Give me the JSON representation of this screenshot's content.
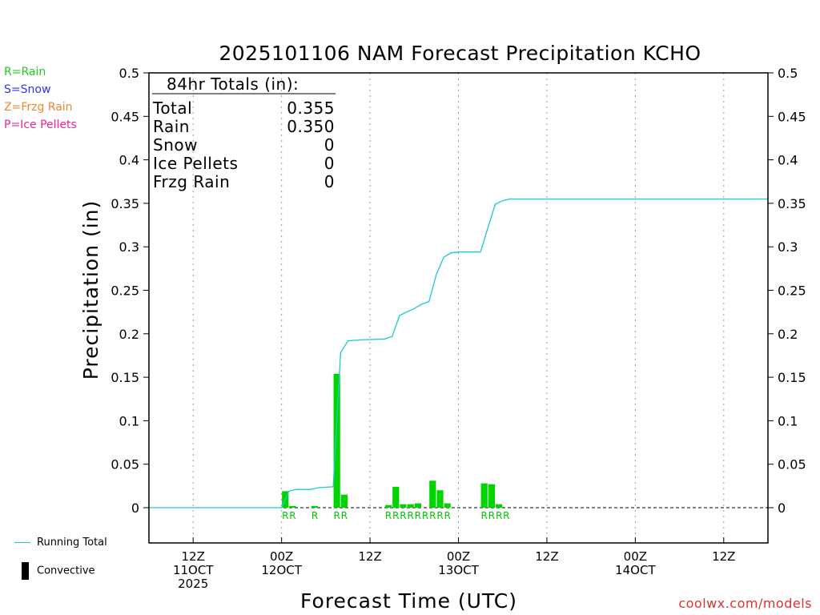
{
  "chart_data": {
    "type": "bar+line",
    "title": "2025101106 NAM Forecast Precipitation KCHO",
    "xlabel": "Forecast Time (UTC)",
    "ylabel": "Precipitation (in)",
    "ylim": [
      -0.04,
      0.5
    ],
    "yticks": [
      0,
      0.05,
      0.1,
      0.15,
      0.2,
      0.25,
      0.3,
      0.35,
      0.4,
      0.45,
      0.5
    ],
    "ytick_labels": [
      "0",
      "0.05",
      "0.1",
      "0.15",
      "0.2",
      "0.25",
      "0.3",
      "0.35",
      "0.4",
      "0.45",
      "0.5"
    ],
    "x_hours_range": [
      0,
      84
    ],
    "x_ticks": [
      {
        "hour": 6,
        "lines": [
          "12Z",
          "11OCT",
          "2025"
        ]
      },
      {
        "hour": 18,
        "lines": [
          "00Z",
          "12OCT"
        ]
      },
      {
        "hour": 30,
        "lines": [
          "12Z"
        ]
      },
      {
        "hour": 42,
        "lines": [
          "00Z",
          "13OCT"
        ]
      },
      {
        "hour": 54,
        "lines": [
          "12Z"
        ]
      },
      {
        "hour": 66,
        "lines": [
          "00Z",
          "14OCT"
        ]
      },
      {
        "hour": 78,
        "lines": [
          "12Z"
        ]
      }
    ],
    "bars": [
      {
        "hour": 19,
        "value": 0.019
      },
      {
        "hour": 20,
        "value": 0.002
      },
      {
        "hour": 23,
        "value": 0.002
      },
      {
        "hour": 26,
        "value": 0.154
      },
      {
        "hour": 27,
        "value": 0.015
      },
      {
        "hour": 33,
        "value": 0.003
      },
      {
        "hour": 34,
        "value": 0.024
      },
      {
        "hour": 35,
        "value": 0.004
      },
      {
        "hour": 36,
        "value": 0.004
      },
      {
        "hour": 37,
        "value": 0.005
      },
      {
        "hour": 39,
        "value": 0.031
      },
      {
        "hour": 40,
        "value": 0.02
      },
      {
        "hour": 41,
        "value": 0.005
      },
      {
        "hour": 46,
        "value": 0.028
      },
      {
        "hour": 47,
        "value": 0.027
      },
      {
        "hour": 48,
        "value": 0.004
      }
    ],
    "precip_type_labels": [
      {
        "hour": 19,
        "text": "R"
      },
      {
        "hour": 20,
        "text": "R"
      },
      {
        "hour": 23,
        "text": "R"
      },
      {
        "hour": 26,
        "text": "R"
      },
      {
        "hour": 27,
        "text": "R"
      },
      {
        "hour": 33,
        "text": "R"
      },
      {
        "hour": 34,
        "text": "R"
      },
      {
        "hour": 35,
        "text": "R"
      },
      {
        "hour": 36,
        "text": "R"
      },
      {
        "hour": 37,
        "text": "R"
      },
      {
        "hour": 38,
        "text": "R"
      },
      {
        "hour": 39,
        "text": "R"
      },
      {
        "hour": 40,
        "text": "R"
      },
      {
        "hour": 41,
        "text": "R"
      },
      {
        "hour": 46,
        "text": "R"
      },
      {
        "hour": 47,
        "text": "R"
      },
      {
        "hour": 48,
        "text": "R"
      },
      {
        "hour": 49,
        "text": "R"
      }
    ],
    "running_total": [
      [
        0,
        0
      ],
      [
        18,
        0
      ],
      [
        19,
        0.019
      ],
      [
        20,
        0.021
      ],
      [
        22,
        0.021
      ],
      [
        23,
        0.023
      ],
      [
        25,
        0.024
      ],
      [
        26,
        0.178
      ],
      [
        27,
        0.192
      ],
      [
        29,
        0.193
      ],
      [
        32,
        0.194
      ],
      [
        33,
        0.197
      ],
      [
        34,
        0.221
      ],
      [
        35,
        0.225
      ],
      [
        36,
        0.229
      ],
      [
        37,
        0.234
      ],
      [
        38,
        0.237
      ],
      [
        39,
        0.268
      ],
      [
        40,
        0.288
      ],
      [
        41,
        0.293
      ],
      [
        42,
        0.294
      ],
      [
        45,
        0.294
      ],
      [
        46,
        0.322
      ],
      [
        47,
        0.349
      ],
      [
        48,
        0.353
      ],
      [
        49,
        0.355
      ],
      [
        84,
        0.355
      ]
    ],
    "totals_box": {
      "header": "84hr Totals (in):",
      "rows": [
        {
          "label": "Total",
          "value": "0.355"
        },
        {
          "label": "Rain",
          "value": "0.350"
        },
        {
          "label": "Snow",
          "value": "0"
        },
        {
          "label": "Ice Pellets",
          "value": "0"
        },
        {
          "label": "Frzg Rain",
          "value": "0"
        }
      ]
    },
    "colors": {
      "bar": "#00d400",
      "running_total": "#1fc7d4",
      "grid": "#9a9a9a",
      "type_label": "#00c800"
    }
  },
  "type_legend": [
    {
      "text": "R=Rain",
      "color": "#22cc22"
    },
    {
      "text": "S=Snow",
      "color": "#3333ee"
    },
    {
      "text": "Z=Frzg Rain",
      "color": "#ee8833"
    },
    {
      "text": "P=Ice Pellets",
      "color": "#ee2299"
    }
  ],
  "footer_legend": {
    "running_total": "Running Total",
    "convective": "Convective"
  },
  "credit": "coolwx.com/models"
}
